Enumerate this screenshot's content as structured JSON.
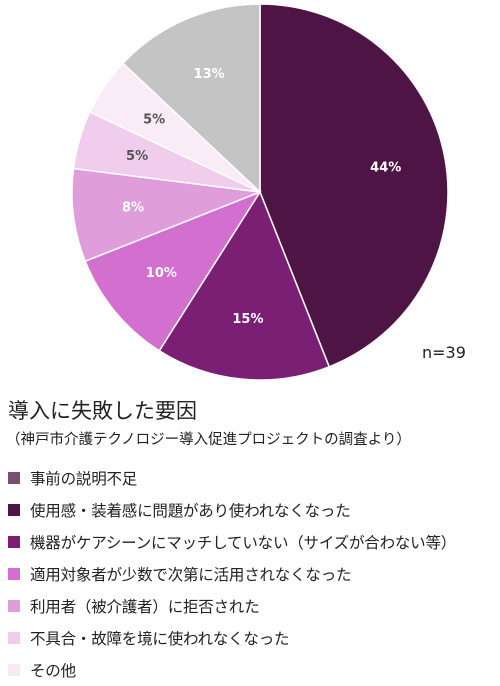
{
  "chart_data": {
    "type": "pie",
    "title": "導入に失敗した要因",
    "subtitle": "（神戸市介護テクノロジー導入促進プロジェクトの調査より）",
    "sample_size": "n=39",
    "legend_position": "bottom",
    "slices": [
      {
        "label": "事前の説明不足",
        "value": 0,
        "display": "",
        "color": "#7a4e72"
      },
      {
        "label": "使用感・装着感に問題があり使われなくなった",
        "value": 44,
        "display": "44%",
        "color": "#4e1446"
      },
      {
        "label": "機器がケアシーンにマッチしていない（サイズが合わない等）",
        "value": 15,
        "display": "15%",
        "color": "#7b1f74"
      },
      {
        "label": "適用対象者が少数で次第に活用されなくなった",
        "value": 10,
        "display": "10%",
        "color": "#d36fcf"
      },
      {
        "label": "利用者（被介護者）に拒否された",
        "value": 8,
        "display": "8%",
        "color": "#e09ddc"
      },
      {
        "label": "不具合・故障を境に使われなくなった",
        "value": 5,
        "display": "5%",
        "color": "#f0cdec"
      },
      {
        "label": "その他",
        "value": 5,
        "display": "5%",
        "color": "#f9ecf7"
      },
      {
        "label": "",
        "value": 13,
        "display": "13%",
        "color": "#c4c4c4"
      }
    ]
  }
}
